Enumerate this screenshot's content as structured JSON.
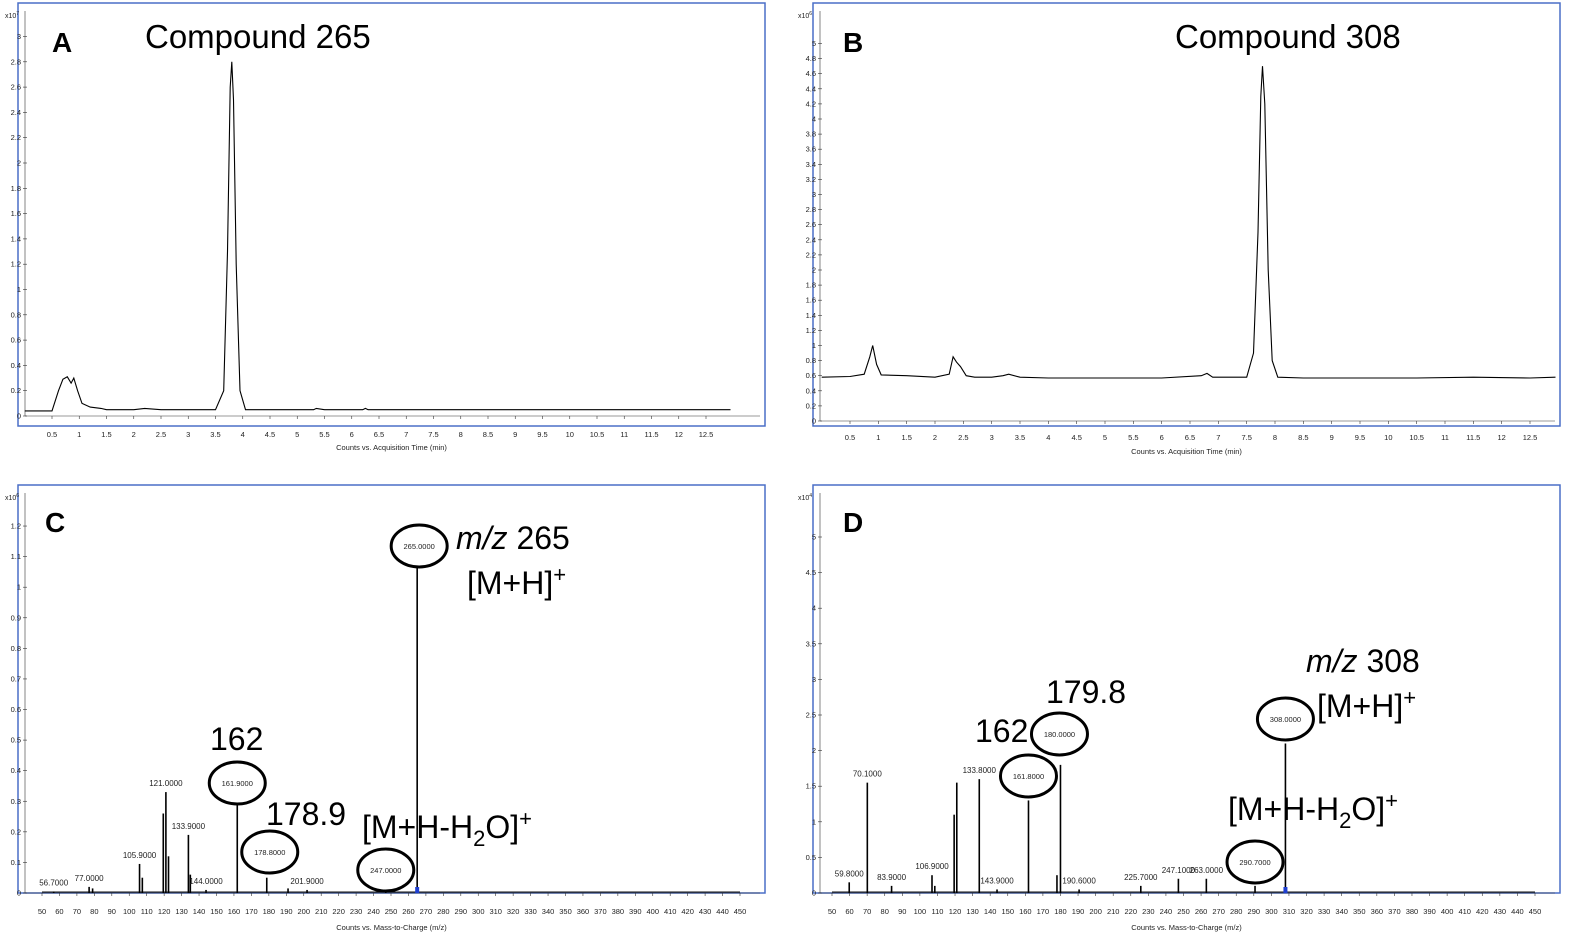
{
  "chart_data": [
    {
      "type": "line",
      "panel": "A",
      "title": "Compound 265",
      "xlabel": "Counts vs. Acquisition Time (min)",
      "ylabel_exponent": "x10",
      "ylabel_exponent_power": "7",
      "xlim": [
        0,
        12.95
      ],
      "ylim": [
        0,
        3.05
      ],
      "xticks": [
        0.5,
        1,
        1.5,
        2,
        2.5,
        3,
        3.5,
        4,
        4.5,
        5,
        5.5,
        6,
        6.5,
        7,
        7.5,
        8,
        8.5,
        9,
        9.5,
        10,
        10.5,
        11,
        11.5,
        12,
        12.5
      ],
      "yticks": [
        0,
        0.2,
        0.4,
        0.6,
        0.8,
        1,
        1.2,
        1.4,
        1.6,
        1.8,
        2,
        2.2,
        2.4,
        2.6,
        2.8,
        3
      ],
      "x": [
        0,
        0.5,
        0.62,
        0.7,
        0.78,
        0.85,
        0.9,
        0.97,
        1.05,
        1.2,
        1.4,
        1.5,
        2.0,
        2.2,
        2.5,
        3.0,
        3.5,
        3.65,
        3.72,
        3.77,
        3.8,
        3.83,
        3.88,
        3.95,
        4.05,
        4.5,
        5.0,
        5.3,
        5.35,
        5.5,
        6.2,
        6.25,
        6.3,
        7,
        8,
        9,
        10,
        11,
        12,
        12.95
      ],
      "y": [
        0.04,
        0.04,
        0.2,
        0.29,
        0.31,
        0.26,
        0.3,
        0.2,
        0.1,
        0.07,
        0.06,
        0.05,
        0.05,
        0.06,
        0.05,
        0.05,
        0.05,
        0.2,
        1.3,
        2.6,
        2.8,
        2.5,
        1.2,
        0.2,
        0.05,
        0.05,
        0.05,
        0.05,
        0.06,
        0.05,
        0.05,
        0.06,
        0.05,
        0.05,
        0.05,
        0.05,
        0.05,
        0.05,
        0.05,
        0.05
      ],
      "grid": false
    },
    {
      "type": "line",
      "panel": "B",
      "title": "Compound 308",
      "xlabel": "Counts vs. Acquisition Time (min)",
      "ylabel_exponent": "x10",
      "ylabel_exponent_power": "6",
      "xlim": [
        0,
        12.95
      ],
      "ylim": [
        0,
        5.1
      ],
      "xticks": [
        0.5,
        1,
        1.5,
        2,
        2.5,
        3,
        3.5,
        4,
        4.5,
        5,
        5.5,
        6,
        6.5,
        7,
        7.5,
        8,
        8.5,
        9,
        9.5,
        10,
        10.5,
        11,
        11.5,
        12,
        12.5
      ],
      "yticks": [
        0,
        0.2,
        0.4,
        0.6,
        0.8,
        1,
        1.2,
        1.4,
        1.6,
        1.8,
        2,
        2.2,
        2.4,
        2.6,
        2.8,
        3,
        3.2,
        3.4,
        3.6,
        3.8,
        4,
        4.2,
        4.4,
        4.6,
        4.8,
        5
      ],
      "x": [
        0,
        0.5,
        0.75,
        0.85,
        0.9,
        0.97,
        1.05,
        1.5,
        2.0,
        2.25,
        2.32,
        2.38,
        2.45,
        2.55,
        2.7,
        3.0,
        3.2,
        3.3,
        3.5,
        4.0,
        5.0,
        6.0,
        6.7,
        6.8,
        6.9,
        7.5,
        7.62,
        7.7,
        7.75,
        7.78,
        7.82,
        7.88,
        7.95,
        8.05,
        8.5,
        9.5,
        10.5,
        11.5,
        12.5,
        12.95
      ],
      "y": [
        0.58,
        0.59,
        0.62,
        0.85,
        1.0,
        0.75,
        0.61,
        0.6,
        0.58,
        0.62,
        0.85,
        0.78,
        0.72,
        0.6,
        0.58,
        0.58,
        0.6,
        0.62,
        0.58,
        0.57,
        0.57,
        0.57,
        0.6,
        0.63,
        0.58,
        0.58,
        0.9,
        2.5,
        4.3,
        4.7,
        4.2,
        2.0,
        0.8,
        0.58,
        0.57,
        0.57,
        0.57,
        0.58,
        0.57,
        0.58
      ],
      "grid": false
    },
    {
      "type": "bar",
      "panel": "C",
      "xlabel": "Counts vs. Mass-to-Charge (m/z)",
      "ylabel_exponent": "x10",
      "ylabel_exponent_power": "6",
      "xlim": [
        45,
        457
      ],
      "ylim": [
        0,
        1.23
      ],
      "xticks": [
        50,
        60,
        70,
        80,
        90,
        100,
        110,
        120,
        130,
        140,
        150,
        160,
        170,
        180,
        190,
        200,
        210,
        220,
        230,
        240,
        250,
        260,
        270,
        280,
        290,
        300,
        310,
        320,
        330,
        340,
        350,
        360,
        370,
        380,
        390,
        400,
        410,
        420,
        430,
        440,
        450
      ],
      "yticks": [
        0,
        0.1,
        0.2,
        0.3,
        0.4,
        0.5,
        0.6,
        0.7,
        0.8,
        0.9,
        1,
        1.1,
        1.2
      ],
      "peaks": [
        {
          "mz": 56.7,
          "intensity": 0.005,
          "label": "56.7000"
        },
        {
          "mz": 77.0,
          "intensity": 0.02,
          "label": "77.0000"
        },
        {
          "mz": 79.0,
          "intensity": 0.015,
          "label": ""
        },
        {
          "mz": 105.9,
          "intensity": 0.095,
          "label": "105.9000"
        },
        {
          "mz": 107.5,
          "intensity": 0.05,
          "label": ""
        },
        {
          "mz": 119.5,
          "intensity": 0.26,
          "label": ""
        },
        {
          "mz": 121.0,
          "intensity": 0.33,
          "label": "121.0000"
        },
        {
          "mz": 122.5,
          "intensity": 0.12,
          "label": ""
        },
        {
          "mz": 133.9,
          "intensity": 0.19,
          "label": "133.9000"
        },
        {
          "mz": 135.0,
          "intensity": 0.06,
          "label": ""
        },
        {
          "mz": 144.0,
          "intensity": 0.01,
          "label": "144.0000"
        },
        {
          "mz": 161.9,
          "intensity": 0.29,
          "label": "161.9000"
        },
        {
          "mz": 178.8,
          "intensity": 0.05,
          "label": "178.8000"
        },
        {
          "mz": 191.0,
          "intensity": 0.015,
          "label": ""
        },
        {
          "mz": 201.9,
          "intensity": 0.01,
          "label": "201.9000"
        },
        {
          "mz": 247.0,
          "intensity": 0.005,
          "label": "247.0000"
        },
        {
          "mz": 265.0,
          "intensity": 1.07,
          "label": "265.0000"
        }
      ],
      "annotations": [
        "m/z",
        "265",
        "[M+H]",
        "+",
        "162",
        "178.9",
        "[M+H-H",
        "2",
        "O]",
        "+"
      ]
    },
    {
      "type": "bar",
      "panel": "D",
      "xlabel": "Counts vs. Mass-to-Charge (m/z)",
      "ylabel_exponent": "x10",
      "ylabel_exponent_power": "4",
      "xlim": [
        45,
        457
      ],
      "ylim": [
        0,
        5.45
      ],
      "xticks": [
        50,
        60,
        70,
        80,
        90,
        100,
        110,
        120,
        130,
        140,
        150,
        160,
        170,
        180,
        190,
        200,
        210,
        220,
        230,
        240,
        250,
        260,
        270,
        280,
        290,
        300,
        310,
        320,
        330,
        340,
        350,
        360,
        370,
        380,
        390,
        400,
        410,
        420,
        430,
        440,
        450
      ],
      "yticks": [
        0,
        0.5,
        1,
        1.5,
        2,
        2.5,
        3,
        3.5,
        4,
        4.5,
        5
      ],
      "peaks": [
        {
          "mz": 59.8,
          "intensity": 0.15,
          "label": "59.8000"
        },
        {
          "mz": 70.1,
          "intensity": 1.55,
          "label": "70.1000"
        },
        {
          "mz": 83.9,
          "intensity": 0.1,
          "label": "83.9000"
        },
        {
          "mz": 106.9,
          "intensity": 0.25,
          "label": "106.9000"
        },
        {
          "mz": 108.5,
          "intensity": 0.1,
          "label": ""
        },
        {
          "mz": 119.5,
          "intensity": 1.1,
          "label": ""
        },
        {
          "mz": 121.0,
          "intensity": 1.55,
          "label": ""
        },
        {
          "mz": 133.8,
          "intensity": 1.6,
          "label": "133.8000"
        },
        {
          "mz": 143.9,
          "intensity": 0.05,
          "label": "143.9000"
        },
        {
          "mz": 161.8,
          "intensity": 1.3,
          "label": "161.8000"
        },
        {
          "mz": 178.0,
          "intensity": 0.25,
          "label": ""
        },
        {
          "mz": 180.0,
          "intensity": 1.8,
          "label": "180.0000"
        },
        {
          "mz": 190.6,
          "intensity": 0.05,
          "label": "190.6000"
        },
        {
          "mz": 225.7,
          "intensity": 0.1,
          "label": "225.7000"
        },
        {
          "mz": 247.1,
          "intensity": 0.2,
          "label": "247.1000"
        },
        {
          "mz": 263.0,
          "intensity": 0.2,
          "label": "263.0000"
        },
        {
          "mz": 290.7,
          "intensity": 0.1,
          "label": "290.7000"
        },
        {
          "mz": 308.0,
          "intensity": 2.1,
          "label": "308.0000"
        }
      ],
      "annotations": [
        "m/z",
        "308",
        "[M+H]",
        "+",
        "162",
        "179.8",
        "[M+H-H",
        "2",
        "O]",
        "+"
      ]
    }
  ],
  "colors": {
    "frame": "#4a6fc7",
    "trace": "#000000",
    "marker": "#1f3fd1"
  }
}
